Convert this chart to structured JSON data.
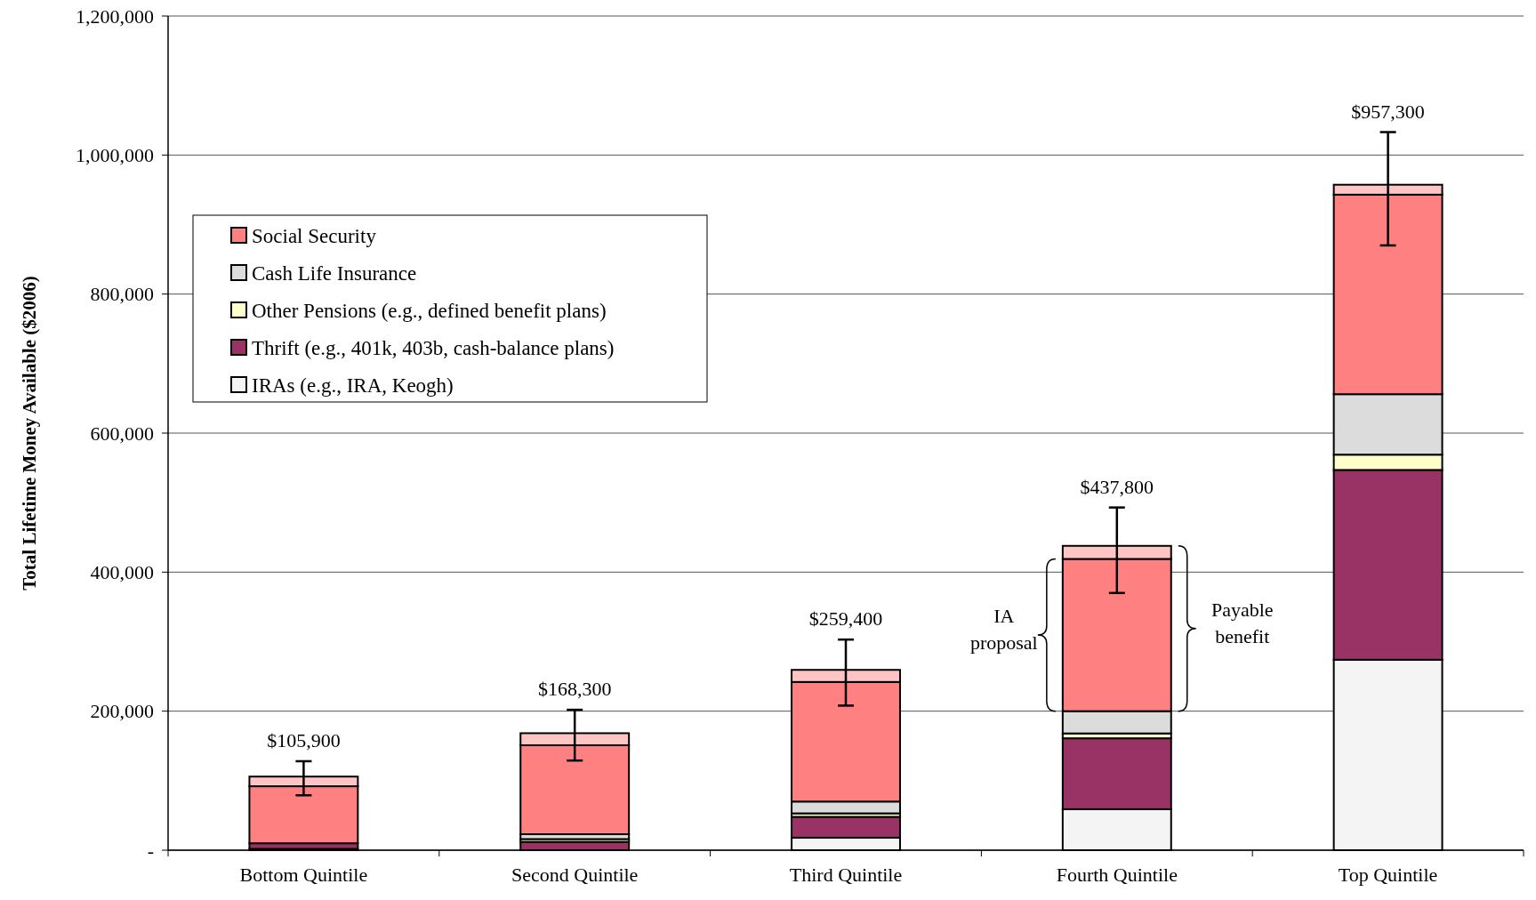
{
  "chart_data": {
    "type": "bar",
    "stacked": true,
    "ylabel": "Total Lifetime Money Available ($2006)",
    "categories": [
      "Bottom Quintile",
      "Second Quintile",
      "Third Quintile",
      "Fourth Quintile",
      "Top Quintile"
    ],
    "series": [
      {
        "name": "IRAs (e.g., IRA, Keogh)",
        "color": "#f4f4f4",
        "values": [
          2000,
          null,
          18000,
          59000,
          274000
        ]
      },
      {
        "name": "Thrift (e.g., 401k, 403b, cash-balance plans)",
        "color": "#993366",
        "values": [
          8000,
          12000,
          30000,
          102000,
          273000
        ]
      },
      {
        "name": "Other Pensions (e.g., defined benefit plans)",
        "color": "#ffffcc",
        "values": [
          null,
          4000,
          5000,
          7000,
          22000
        ]
      },
      {
        "name": "Cash Life Insurance",
        "color": "#dcdcdc",
        "values": [
          null,
          7000,
          17000,
          32000,
          87000
        ]
      },
      {
        "name": "Social Security",
        "color": "#ff8080",
        "values": [
          82000,
          128000,
          172000,
          219000,
          287000
        ]
      },
      {
        "color": "#ffc4c4",
        "values": [
          13900,
          17300,
          17400,
          18800,
          14300
        ],
        "errors": [
          [
            79000,
            128000
          ],
          [
            129000,
            202000
          ],
          [
            208000,
            303000
          ],
          [
            370000,
            493000
          ],
          [
            870000,
            1033000
          ]
        ]
      }
    ],
    "totals": [
      "$105,900",
      "$168,300",
      "$259,400",
      "$437,800",
      "$957,300"
    ],
    "ylim": [
      0,
      1200000
    ],
    "yticks": [
      {
        "value": 0,
        "label": "-"
      },
      {
        "value": 200000,
        "label": "200,000"
      },
      {
        "value": 400000,
        "label": "400,000"
      },
      {
        "value": 600000,
        "label": "600,000"
      },
      {
        "value": 800000,
        "label": "800,000"
      },
      {
        "value": 1000000,
        "label": "1,000,000"
      },
      {
        "value": 1200000,
        "label": "1,200,000"
      }
    ],
    "grid": "y",
    "legend": "top left",
    "annotations": [
      "IA proposal",
      "Payable benefit"
    ]
  }
}
